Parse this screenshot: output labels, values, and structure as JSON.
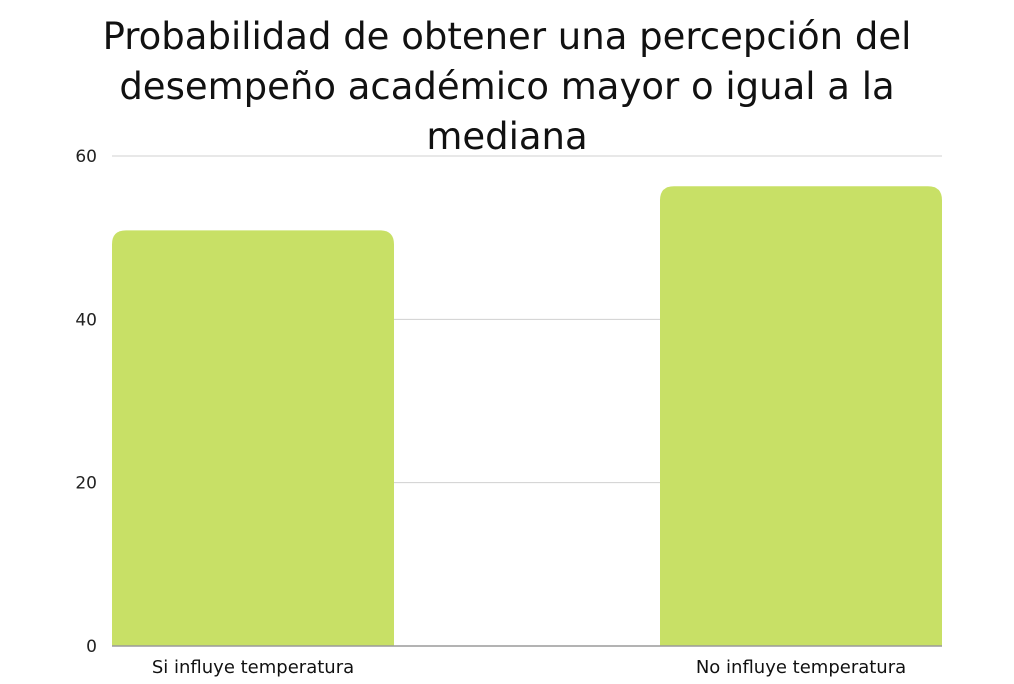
{
  "chart_data": {
    "type": "bar",
    "title_lines": [
      "Probabilidad de obtener una percepción del",
      "desempeño académico mayor o igual a la",
      "mediana"
    ],
    "categories": [
      "Si influye temperatura",
      "No influye temperatura"
    ],
    "values": [
      50.9,
      56.3
    ],
    "xlabel": "",
    "ylabel": "",
    "ylim": [
      0,
      60
    ],
    "yticks": [
      0,
      20,
      40,
      60
    ],
    "grid": true,
    "bar_color": "#c8e066",
    "grid_color": "#d0d0d0",
    "axis_color": "#9a9a9a"
  }
}
